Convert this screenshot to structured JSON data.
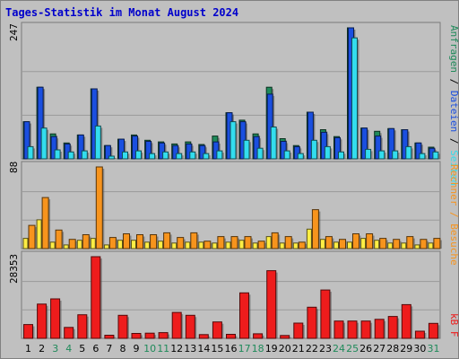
{
  "title": "Tages-Statistik im Monat August 2024",
  "colors": {
    "title": "#0000cc",
    "frame": "#c0c0c0",
    "plot_bg": "#c0c0c0",
    "anfragen": "#1f8a5a",
    "dateien": "#1a4fe0",
    "seiten": "#33ddee",
    "besuche": "#f7941d",
    "rechner": "#ffee44",
    "kbf": "#ee1c1c",
    "weekday": "#000000",
    "weekend": "#1f8a5a"
  },
  "labels": {
    "top_axis_max": "247",
    "mid_axis_max": "88",
    "bottom_axis_max": "28353",
    "right_top_1": "Anfragen",
    "right_top_sep": " / ",
    "right_top_2": "Dateien",
    "right_top_3": "Seiten",
    "right_mid": "Rechner / Besuche",
    "right_bottom": "kB F"
  },
  "chart_data": [
    {
      "type": "bar",
      "panel": "top",
      "categories": [
        "1",
        "2",
        "3",
        "4",
        "5",
        "6",
        "7",
        "8",
        "9",
        "10",
        "11",
        "12",
        "13",
        "14",
        "15",
        "16",
        "17",
        "18",
        "19",
        "20",
        "21",
        "22",
        "23",
        "24",
        "25",
        "26",
        "27",
        "28",
        "29",
        "30",
        "31"
      ],
      "weekend": [
        "3",
        "4",
        "10",
        "11",
        "17",
        "18",
        "24",
        "25",
        "31"
      ],
      "ylim": [
        0,
        247
      ],
      "series": [
        {
          "name": "Anfragen",
          "values": [
            70,
            135,
            47,
            30,
            45,
            132,
            25,
            37,
            45,
            35,
            32,
            28,
            32,
            27,
            43,
            87,
            73,
            47,
            135,
            38,
            25,
            88,
            55,
            42,
            247,
            58,
            52,
            57,
            55,
            30,
            22
          ]
        },
        {
          "name": "Dateien",
          "values": [
            70,
            135,
            42,
            28,
            45,
            132,
            25,
            37,
            43,
            33,
            30,
            25,
            28,
            25,
            32,
            87,
            70,
            42,
            122,
            33,
            23,
            88,
            50,
            40,
            247,
            58,
            43,
            57,
            55,
            30,
            20
          ]
        },
        {
          "name": "Seiten",
          "values": [
            23,
            58,
            17,
            13,
            15,
            62,
            5,
            13,
            15,
            10,
            13,
            10,
            13,
            10,
            15,
            70,
            35,
            20,
            60,
            15,
            10,
            35,
            23,
            13,
            228,
            18,
            15,
            15,
            23,
            10,
            13
          ]
        }
      ]
    },
    {
      "type": "bar",
      "panel": "middle",
      "categories": [
        "1",
        "2",
        "3",
        "4",
        "5",
        "6",
        "7",
        "8",
        "9",
        "10",
        "11",
        "12",
        "13",
        "14",
        "15",
        "16",
        "17",
        "18",
        "19",
        "20",
        "21",
        "22",
        "23",
        "24",
        "25",
        "26",
        "27",
        "28",
        "29",
        "30",
        "31"
      ],
      "ylim": [
        0,
        88
      ],
      "series": [
        {
          "name": "Rechner",
          "values": [
            11,
            31,
            7,
            4,
            9,
            11,
            4,
            9,
            9,
            7,
            8,
            6,
            7,
            7,
            6,
            7,
            9,
            6,
            13,
            6,
            6,
            21,
            10,
            7,
            7,
            11,
            9,
            6,
            6,
            4,
            6
          ]
        },
        {
          "name": "Besuche",
          "values": [
            25,
            55,
            20,
            10,
            15,
            88,
            12,
            16,
            15,
            15,
            17,
            12,
            17,
            8,
            13,
            13,
            13,
            8,
            17,
            13,
            7,
            42,
            13,
            10,
            16,
            16,
            11,
            10,
            13,
            10,
            11
          ]
        }
      ]
    },
    {
      "type": "bar",
      "panel": "bottom",
      "categories": [
        "1",
        "2",
        "3",
        "4",
        "5",
        "6",
        "7",
        "8",
        "9",
        "10",
        "11",
        "12",
        "13",
        "14",
        "15",
        "16",
        "17",
        "18",
        "19",
        "20",
        "21",
        "22",
        "23",
        "24",
        "25",
        "26",
        "27",
        "28",
        "29",
        "30",
        "31"
      ],
      "ylim": [
        0,
        28353
      ],
      "series": [
        {
          "name": "kB F",
          "values": [
            4800,
            11900,
            13700,
            3800,
            8200,
            28353,
            1100,
            8000,
            1700,
            1800,
            2000,
            9000,
            8000,
            1300,
            5700,
            1400,
            15800,
            1600,
            23500,
            1000,
            5300,
            10800,
            16800,
            6000,
            6000,
            6000,
            6600,
            7600,
            11700,
            2500,
            5200
          ]
        }
      ]
    }
  ]
}
